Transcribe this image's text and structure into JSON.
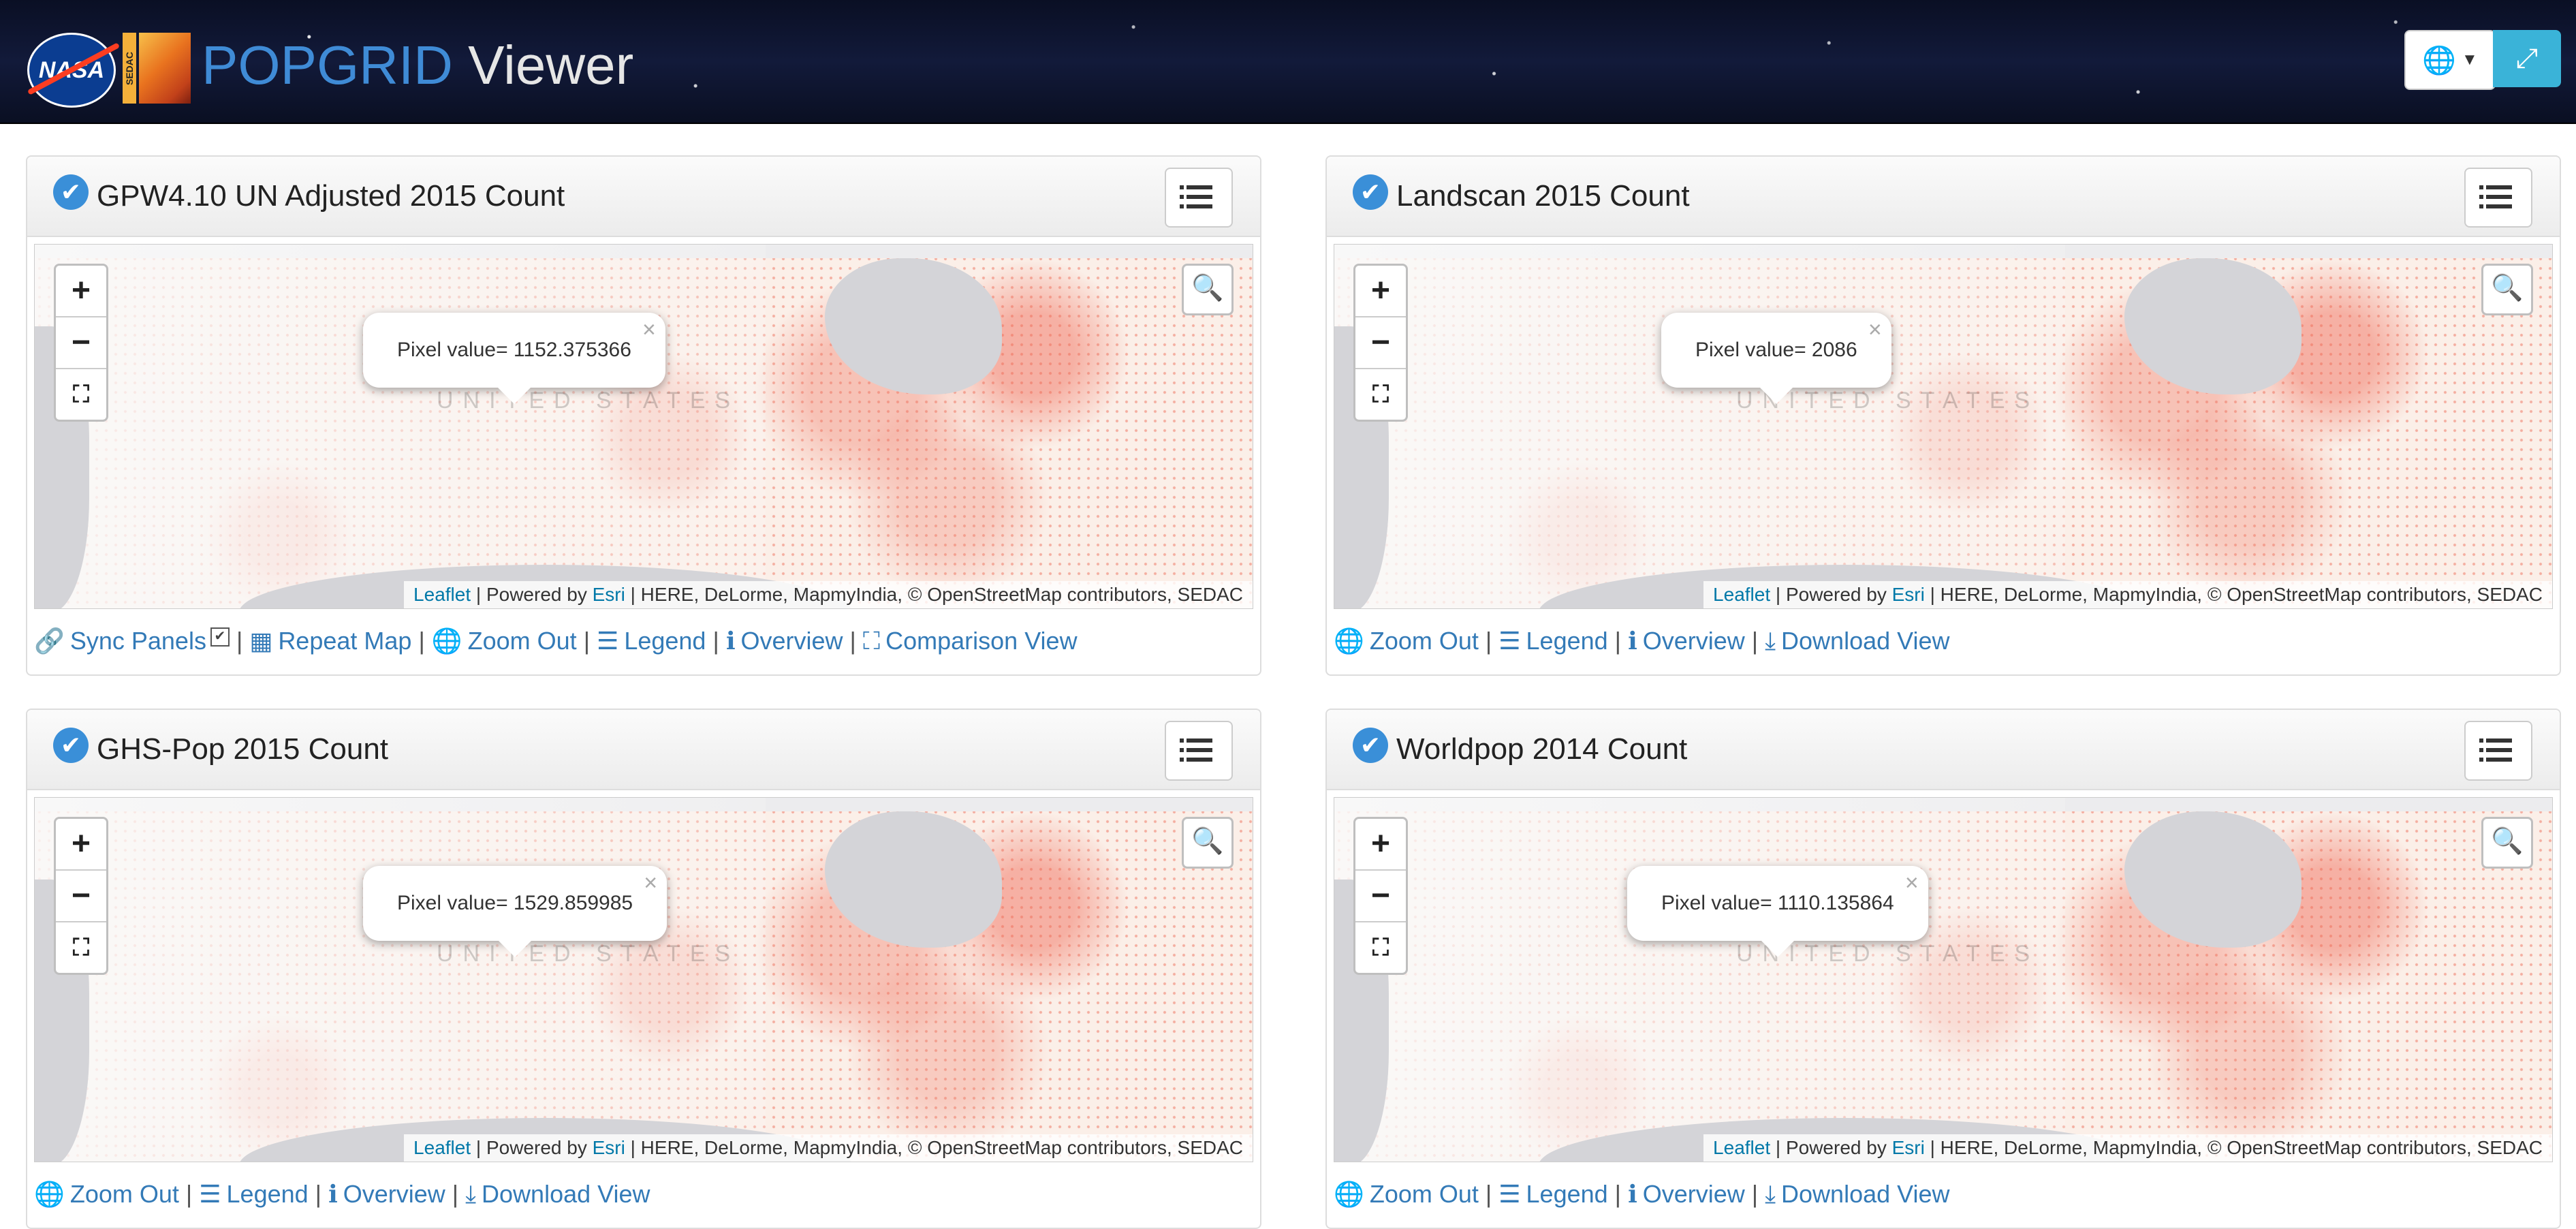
{
  "header": {
    "nasa_logo_text": "NASA",
    "sedac_text": "SEDAC",
    "title_part1": "POPGRID",
    "title_part2": " Viewer",
    "globe_icon": "globe-icon",
    "fullscreen_icon": "fullscreen-icon"
  },
  "map_common": {
    "country_label": "UNITED STATES",
    "attribution_leaflet": "Leaflet",
    "attribution_powered": " | Powered by ",
    "attribution_esri": "Esri",
    "attribution_rest": " | HERE, DeLorme, MapmyIndia, © OpenStreetMap contributors, SEDAC",
    "popup_close": "×",
    "zoom_in": "+",
    "zoom_out": "−",
    "zoom_extent": "⛶",
    "search": "🔍"
  },
  "panels": [
    {
      "title": "GPW4.10 UN Adjusted 2015 Count",
      "popup": "Pixel value= 1152.375366",
      "footer": [
        {
          "icon": "link-icon",
          "glyph": "🔗",
          "label": "Sync Panels"
        },
        {
          "icon": "grid-icon",
          "glyph": "▦",
          "label": "Repeat Map"
        },
        {
          "icon": "globe-icon",
          "glyph": "🌐",
          "label": "Zoom Out"
        },
        {
          "icon": "list-icon",
          "glyph": "☰",
          "label": "Legend"
        },
        {
          "icon": "info-icon",
          "glyph": "ℹ",
          "label": "Overview"
        },
        {
          "icon": "expand-icon",
          "glyph": "⛶",
          "label": "Comparison View"
        }
      ]
    },
    {
      "title": "Landscan 2015 Count",
      "popup": "Pixel value= 2086",
      "footer": [
        {
          "icon": "globe-icon",
          "glyph": "🌐",
          "label": "Zoom Out"
        },
        {
          "icon": "list-icon",
          "glyph": "☰",
          "label": "Legend"
        },
        {
          "icon": "info-icon",
          "glyph": "ℹ",
          "label": "Overview"
        },
        {
          "icon": "download-icon",
          "glyph": "⤓",
          "label": "Download View"
        }
      ]
    },
    {
      "title": "GHS-Pop 2015 Count",
      "popup": "Pixel value= 1529.859985",
      "footer": [
        {
          "icon": "globe-icon",
          "glyph": "🌐",
          "label": "Zoom Out"
        },
        {
          "icon": "list-icon",
          "glyph": "☰",
          "label": "Legend"
        },
        {
          "icon": "info-icon",
          "glyph": "ℹ",
          "label": "Overview"
        },
        {
          "icon": "download-icon",
          "glyph": "⤓",
          "label": "Download View"
        }
      ]
    },
    {
      "title": "Worldpop 2014 Count",
      "popup": "Pixel value= 1110.135864",
      "footer": [
        {
          "icon": "globe-icon",
          "glyph": "🌐",
          "label": "Zoom Out"
        },
        {
          "icon": "list-icon",
          "glyph": "☰",
          "label": "Legend"
        },
        {
          "icon": "info-icon",
          "glyph": "ℹ",
          "label": "Overview"
        },
        {
          "icon": "download-icon",
          "glyph": "⤓",
          "label": "Download View"
        }
      ]
    }
  ],
  "colors": {
    "title_blue": "#3f8bd6",
    "link_blue": "#337ab7",
    "fullscreen_btn": "#3ab3d8"
  }
}
